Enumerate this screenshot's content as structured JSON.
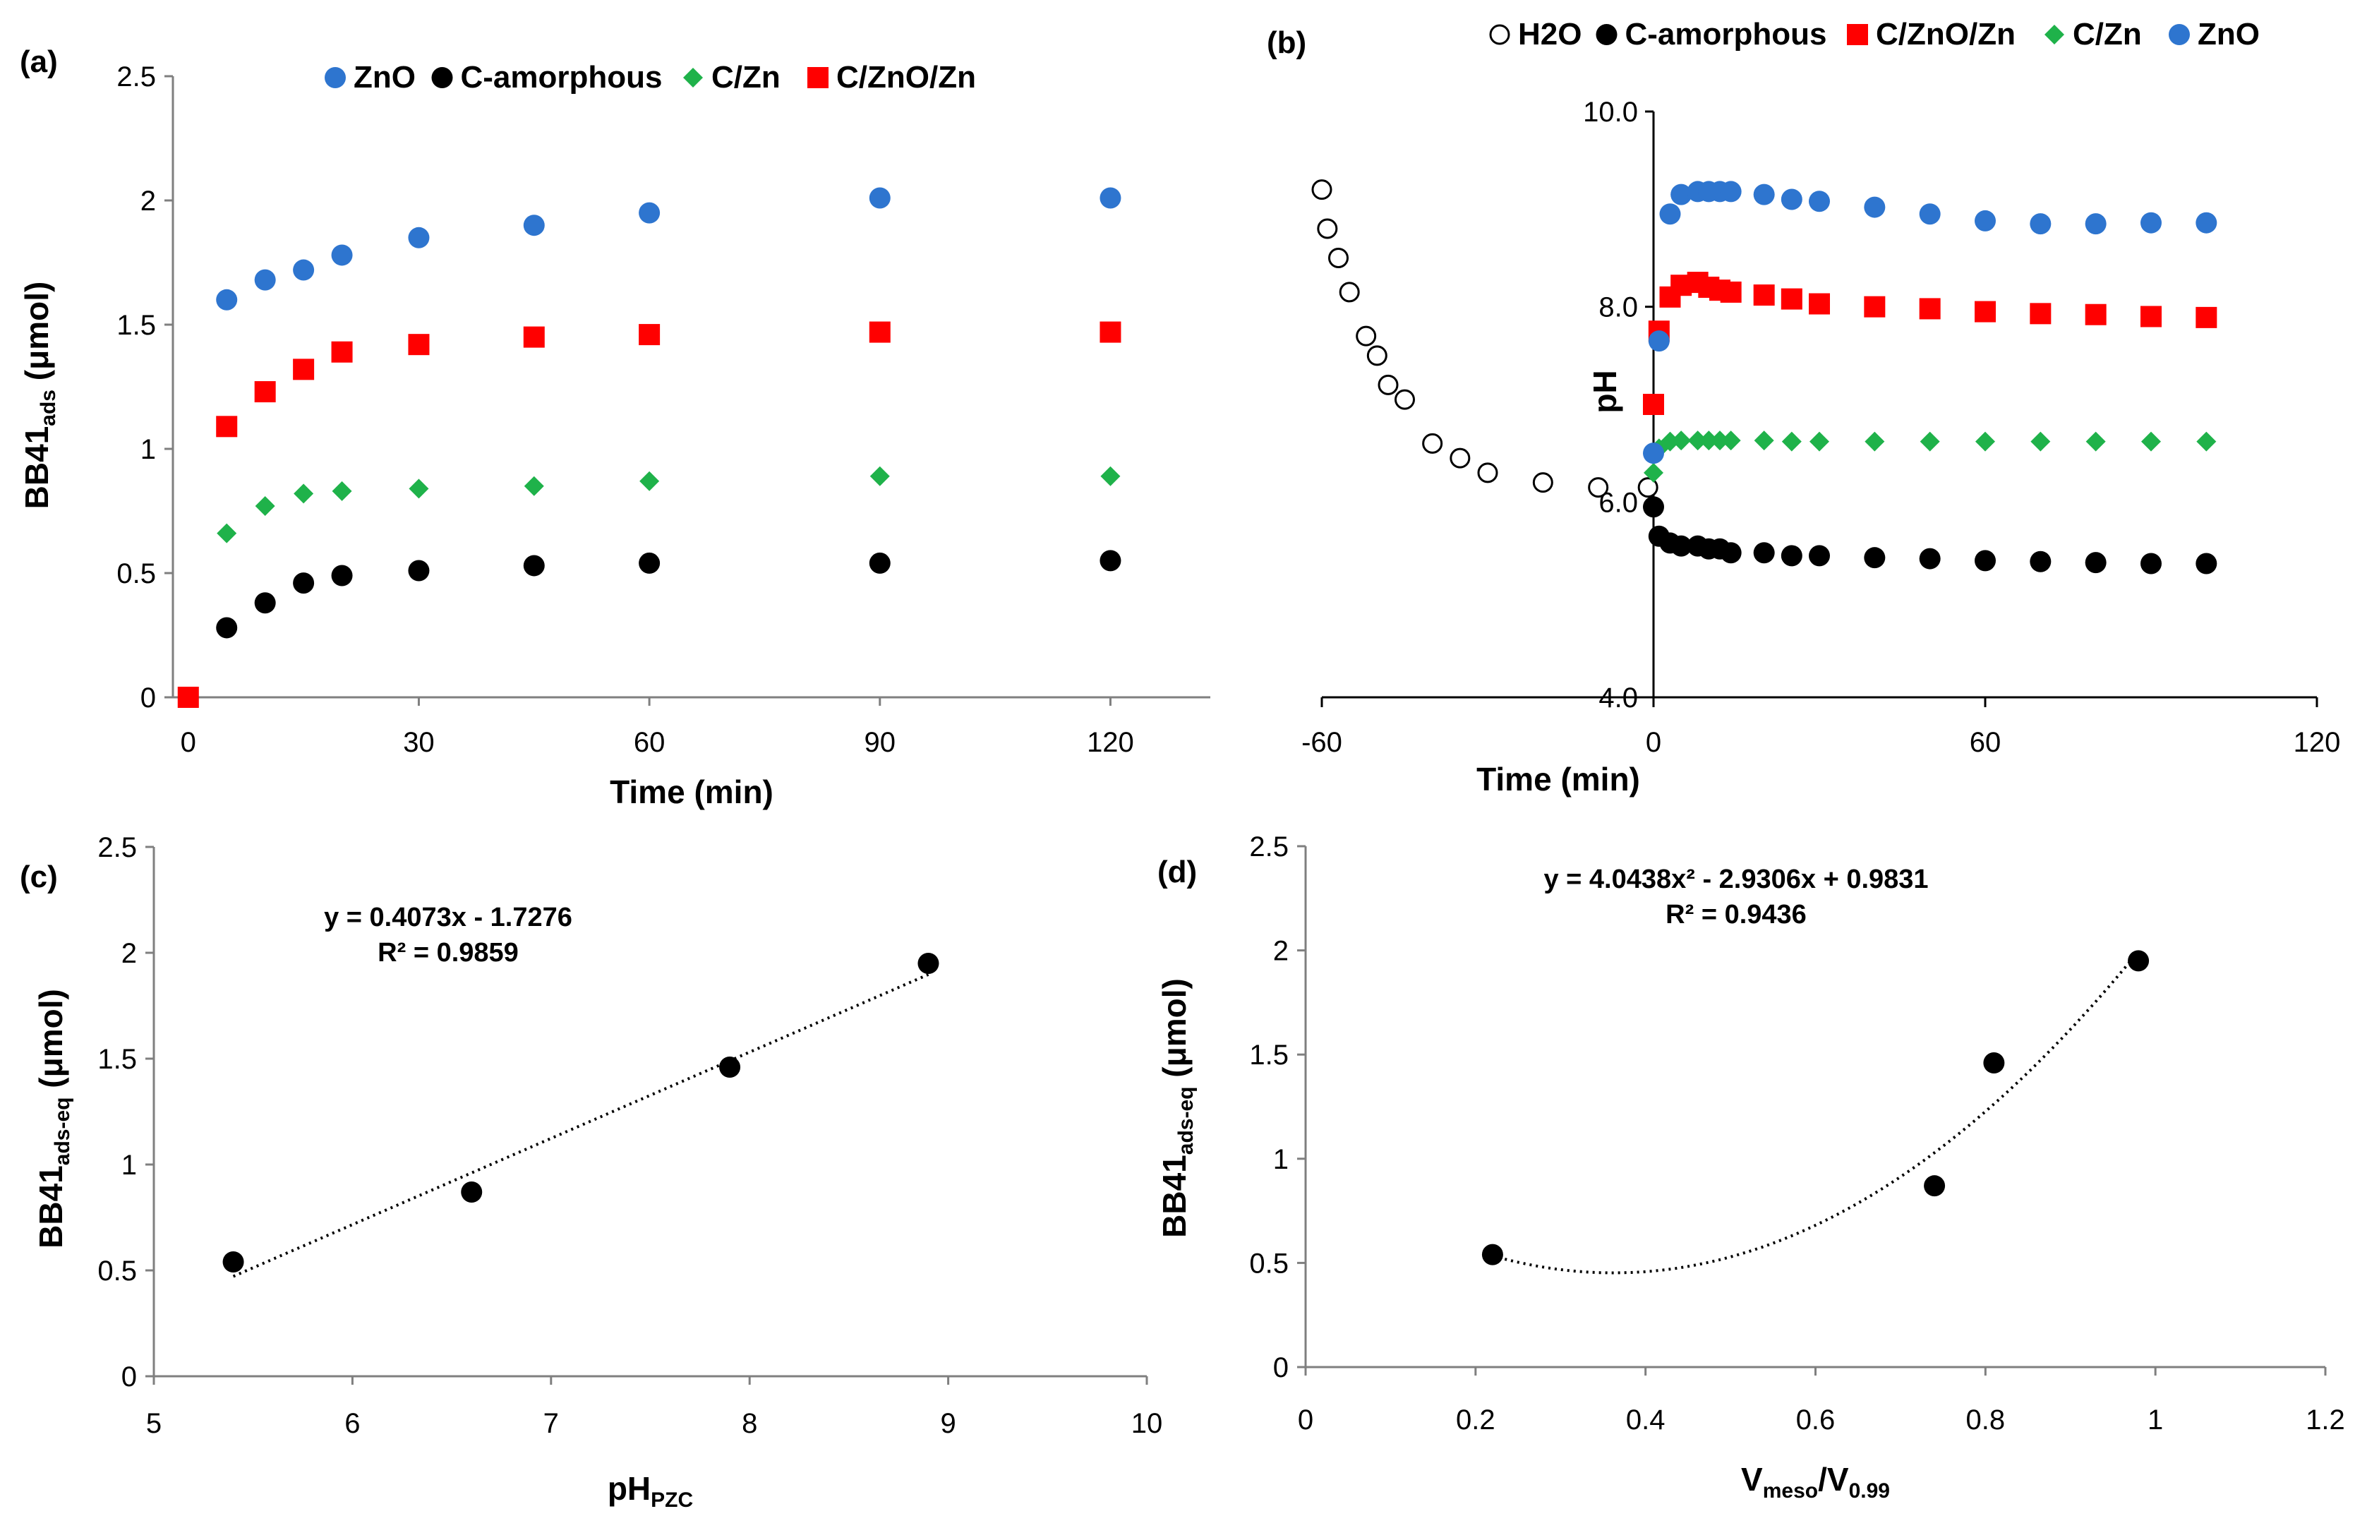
{
  "chart_data": [
    {
      "panel": "(a)",
      "type": "scatter",
      "xlabel": "Time (min)",
      "ylabel": "BB41",
      "ylabel_sub": "ads",
      "ylabel_unit": " (μmol)",
      "xlim": [
        -2,
        133
      ],
      "ylim": [
        0,
        2.5
      ],
      "xticks": [
        "0",
        "30",
        "60",
        "90",
        "120"
      ],
      "xtick_values": [
        0,
        30,
        60,
        90,
        120
      ],
      "yticks": [
        "0",
        "0.5",
        "1",
        "1.5",
        "2",
        "2.5"
      ],
      "ytick_values": [
        0,
        0.5,
        1,
        1.5,
        2,
        2.5
      ],
      "legend_position": "top",
      "series": [
        {
          "name": "ZnO",
          "color": "#2e75cf",
          "marker": "circle",
          "x": [
            5,
            10,
            15,
            20,
            30,
            45,
            60,
            90,
            120
          ],
          "y": [
            1.6,
            1.68,
            1.72,
            1.78,
            1.85,
            1.9,
            1.95,
            2.01,
            2.01
          ]
        },
        {
          "name": "C-amorphous",
          "color": "#000000",
          "marker": "circle",
          "x": [
            5,
            10,
            15,
            20,
            30,
            45,
            60,
            90,
            120
          ],
          "y": [
            0.28,
            0.38,
            0.46,
            0.49,
            0.51,
            0.53,
            0.54,
            0.54,
            0.55
          ]
        },
        {
          "name": "C/Zn",
          "color": "#1fb24a",
          "marker": "diamond",
          "x": [
            5,
            10,
            15,
            20,
            30,
            45,
            60,
            90,
            120
          ],
          "y": [
            0.66,
            0.77,
            0.82,
            0.83,
            0.84,
            0.85,
            0.87,
            0.89,
            0.89
          ]
        },
        {
          "name": "C/ZnO/Zn",
          "color": "#ff0000",
          "marker": "square",
          "x": [
            0,
            5,
            10,
            15,
            20,
            30,
            45,
            60,
            90,
            120
          ],
          "y": [
            0,
            1.09,
            1.23,
            1.32,
            1.39,
            1.42,
            1.45,
            1.46,
            1.47,
            1.47
          ]
        }
      ]
    },
    {
      "panel": "(b)",
      "type": "scatter",
      "xlabel": "Time (min)",
      "ylabel": "pH",
      "xlim": [
        -60,
        120
      ],
      "ylim": [
        4.0,
        10.0
      ],
      "xticks": [
        "-60",
        "0",
        "60",
        "120"
      ],
      "xtick_values": [
        -60,
        0,
        60,
        120
      ],
      "yticks": [
        "4.0",
        "6.0",
        "8.0",
        "10.0"
      ],
      "ytick_values": [
        4,
        6,
        8,
        10
      ],
      "legend_position": "top",
      "series": [
        {
          "name": "H2O",
          "color": "#000000",
          "marker": "open-circle",
          "x": [
            -60,
            -59,
            -57,
            -55,
            -52,
            -50,
            -48,
            -45,
            -40,
            -35,
            -30,
            -20,
            -10,
            -1
          ],
          "y": [
            9.2,
            8.8,
            8.5,
            8.15,
            7.7,
            7.5,
            7.2,
            7.05,
            6.6,
            6.45,
            6.3,
            6.2,
            6.15,
            6.15
          ]
        },
        {
          "name": "C-amorphous",
          "color": "#000000",
          "marker": "circle",
          "x": [
            0,
            1,
            3,
            5,
            8,
            10,
            12,
            14,
            20,
            25,
            30,
            40,
            50,
            60,
            70,
            80,
            90,
            100
          ],
          "y": [
            5.95,
            5.65,
            5.58,
            5.55,
            5.55,
            5.52,
            5.52,
            5.48,
            5.48,
            5.45,
            5.45,
            5.43,
            5.42,
            5.4,
            5.39,
            5.38,
            5.37,
            5.37
          ]
        },
        {
          "name": "C/ZnO/Zn",
          "color": "#ff0000",
          "marker": "square",
          "x": [
            0,
            1,
            3,
            5,
            8,
            10,
            12,
            14,
            20,
            25,
            30,
            40,
            50,
            60,
            70,
            80,
            90,
            100
          ],
          "y": [
            7.0,
            7.75,
            8.1,
            8.22,
            8.25,
            8.2,
            8.17,
            8.15,
            8.12,
            8.08,
            8.03,
            8.0,
            7.98,
            7.95,
            7.93,
            7.92,
            7.9,
            7.89
          ]
        },
        {
          "name": "C/Zn",
          "color": "#1fb24a",
          "marker": "diamond",
          "x": [
            0,
            1,
            3,
            5,
            8,
            10,
            12,
            14,
            20,
            25,
            30,
            40,
            50,
            60,
            70,
            80,
            90,
            100
          ],
          "y": [
            6.3,
            6.55,
            6.62,
            6.63,
            6.63,
            6.63,
            6.63,
            6.63,
            6.63,
            6.62,
            6.62,
            6.62,
            6.62,
            6.62,
            6.62,
            6.62,
            6.62,
            6.62
          ]
        },
        {
          "name": "ZnO",
          "color": "#2e75cf",
          "marker": "circle",
          "x": [
            0,
            1,
            3,
            5,
            8,
            10,
            12,
            14,
            20,
            25,
            30,
            40,
            50,
            60,
            70,
            80,
            90,
            100
          ],
          "y": [
            6.5,
            7.65,
            8.95,
            9.15,
            9.18,
            9.18,
            9.18,
            9.18,
            9.15,
            9.1,
            9.08,
            9.02,
            8.95,
            8.88,
            8.85,
            8.85,
            8.86,
            8.86
          ]
        }
      ]
    },
    {
      "panel": "(c)",
      "type": "scatter",
      "xlabel": "pH",
      "xlabel_sub": "PZC",
      "ylabel": "BB41",
      "ylabel_sub": "ads-eq",
      "ylabel_unit": " (μmol)",
      "xlim": [
        5,
        10
      ],
      "ylim": [
        0,
        2.5
      ],
      "xticks": [
        "5",
        "6",
        "7",
        "8",
        "9",
        "10"
      ],
      "xtick_values": [
        5,
        6,
        7,
        8,
        9,
        10
      ],
      "yticks": [
        "0",
        "0.5",
        "1",
        "1.5",
        "2",
        "2.5"
      ],
      "ytick_values": [
        0,
        0.5,
        1,
        1.5,
        2,
        2.5
      ],
      "equation": "y = 0.4073x - 1.7276",
      "r_squared": "R² = 0.9859",
      "trendline": {
        "kind": "linear",
        "coef": [
          -1.7276,
          0.4073
        ],
        "x_range": [
          5.4,
          8.9
        ]
      },
      "series": [
        {
          "color": "#000000",
          "marker": "circle",
          "x": [
            5.4,
            6.6,
            7.9,
            8.9
          ],
          "y": [
            0.54,
            0.87,
            1.46,
            1.95
          ]
        }
      ]
    },
    {
      "panel": "(d)",
      "type": "scatter",
      "xlabel": "V",
      "xlabel_sub": "meso",
      "xlabel_mid": "/V",
      "xlabel_sub2": "0.99",
      "ylabel": "BB41",
      "ylabel_sub": "ads-eq",
      "ylabel_unit": " (μmol)",
      "xlim": [
        0,
        1.2
      ],
      "ylim": [
        0,
        2.5
      ],
      "xticks": [
        "0",
        "0.2",
        "0.4",
        "0.6",
        "0.8",
        "1",
        "1.2"
      ],
      "xtick_values": [
        0,
        0.2,
        0.4,
        0.6,
        0.8,
        1.0,
        1.2
      ],
      "yticks": [
        "0",
        "0.5",
        "1",
        "1.5",
        "2",
        "2.5"
      ],
      "ytick_values": [
        0,
        0.5,
        1,
        1.5,
        2,
        2.5
      ],
      "equation": "y = 4.0438x² - 2.9306x + 0.9831",
      "r_squared": "R² = 0.9436",
      "trendline": {
        "kind": "poly2",
        "coef": [
          0.9831,
          -2.9306,
          4.0438
        ],
        "x_range": [
          0.22,
          0.98
        ]
      },
      "series": [
        {
          "color": "#000000",
          "marker": "circle",
          "x": [
            0.22,
            0.74,
            0.81,
            0.98
          ],
          "y": [
            0.54,
            0.87,
            1.46,
            1.95
          ]
        }
      ]
    }
  ]
}
